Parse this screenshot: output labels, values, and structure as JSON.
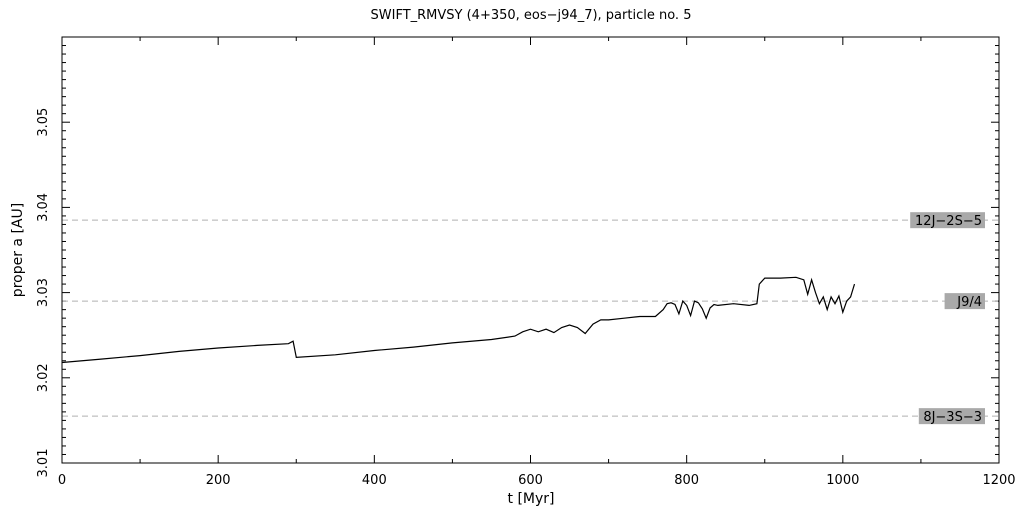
{
  "chart_data": {
    "type": "line",
    "title": "SWIFT_RMVSY (4+350, eos−j94_7), particle no. 5",
    "xlabel": "t [Myr]",
    "ylabel": "proper a [AU]",
    "xlim": [
      0,
      1200
    ],
    "ylim": [
      3.01,
      3.06
    ],
    "x_ticks": [
      0,
      200,
      400,
      600,
      800,
      1000,
      1200
    ],
    "y_ticks": [
      3.01,
      3.02,
      3.03,
      3.04,
      3.05
    ],
    "x_tick_labels": [
      "0",
      "200",
      "400",
      "600",
      "800",
      "1000",
      "1200"
    ],
    "y_tick_labels": [
      "3.01",
      "3.02",
      "3.03",
      "3.04",
      "3.05"
    ],
    "grid": false,
    "series": [
      {
        "color": "#000000",
        "x": [
          0,
          50,
          100,
          150,
          200,
          250,
          290,
          296,
          300,
          350,
          400,
          450,
          500,
          550,
          580,
          590,
          600,
          610,
          620,
          630,
          640,
          650,
          660,
          670,
          680,
          690,
          700,
          720,
          740,
          760,
          770,
          775,
          780,
          785,
          790,
          795,
          800,
          805,
          810,
          815,
          820,
          825,
          830,
          835,
          840,
          860,
          880,
          890,
          893,
          900,
          920,
          940,
          950,
          955,
          960,
          965,
          970,
          975,
          980,
          985,
          990,
          995,
          1000,
          1005,
          1010,
          1015
        ],
        "y": [
          3.0218,
          3.0222,
          3.0226,
          3.0231,
          3.0235,
          3.0238,
          3.024,
          3.0243,
          3.0224,
          3.0227,
          3.0232,
          3.0236,
          3.0241,
          3.0245,
          3.0249,
          3.0254,
          3.0257,
          3.0254,
          3.0257,
          3.0253,
          3.0259,
          3.0262,
          3.0259,
          3.0252,
          3.0263,
          3.0268,
          3.0268,
          3.027,
          3.0272,
          3.0272,
          3.028,
          3.0287,
          3.0288,
          3.0286,
          3.0275,
          3.029,
          3.0285,
          3.0273,
          3.029,
          3.0288,
          3.0281,
          3.027,
          3.0282,
          3.0286,
          3.0285,
          3.0287,
          3.0285,
          3.0287,
          3.031,
          3.0317,
          3.0317,
          3.0318,
          3.0315,
          3.0298,
          3.0315,
          3.03,
          3.0287,
          3.0295,
          3.028,
          3.0295,
          3.0287,
          3.0296,
          3.0277,
          3.029,
          3.0295,
          3.031
        ]
      }
    ],
    "resonances": [
      {
        "label": "12J−2S−5",
        "y": 3.0385
      },
      {
        "label": "J9/4",
        "y": 3.029
      },
      {
        "label": "8J−3S−3",
        "y": 3.0155
      }
    ]
  }
}
